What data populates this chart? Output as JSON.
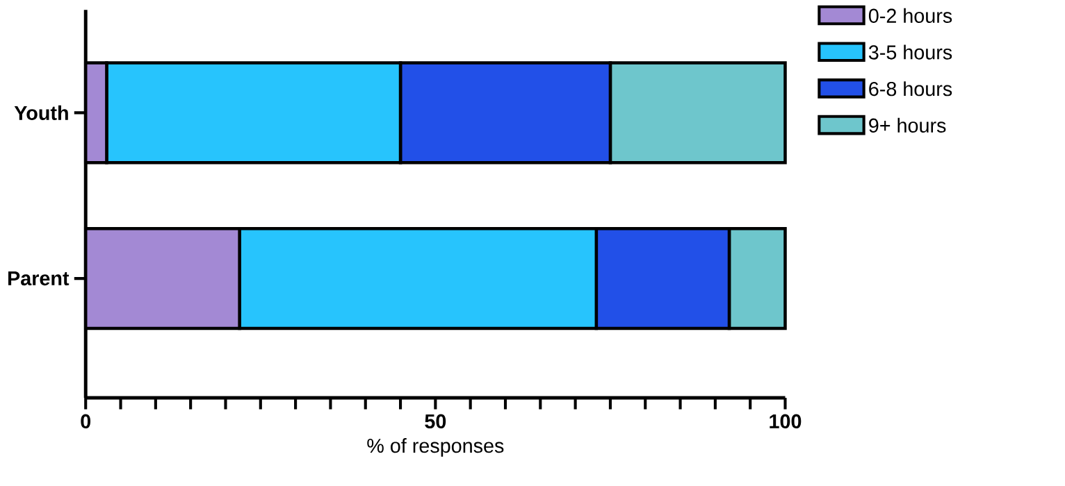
{
  "chart_data": {
    "type": "bar",
    "orientation": "horizontal",
    "stacked": true,
    "xlabel": "% of responses",
    "categories": [
      "Youth",
      "Parent"
    ],
    "series": [
      {
        "name": "0-2 hours",
        "color": "#a389d4",
        "values": [
          3,
          22
        ]
      },
      {
        "name": "3-5 hours",
        "color": "#27c4fd",
        "values": [
          42,
          51
        ]
      },
      {
        "name": "6-8 hours",
        "color": "#2250e8",
        "values": [
          30,
          19
        ]
      },
      {
        "name": "9+ hours",
        "color": "#6ec6cc",
        "values": [
          25,
          8
        ]
      }
    ],
    "xlim": [
      0,
      100
    ],
    "xticks": [
      0,
      {
        "value": 5,
        "label": null
      },
      {
        "value": 10,
        "label": null
      },
      {
        "value": 15,
        "label": null
      },
      {
        "value": 20,
        "label": null
      },
      {
        "value": 25,
        "label": null
      },
      {
        "value": 30,
        "label": null
      },
      {
        "value": 35,
        "label": null
      },
      {
        "value": 40,
        "label": null
      },
      {
        "value": 45,
        "label": null
      },
      50,
      {
        "value": 55,
        "label": null
      },
      {
        "value": 60,
        "label": null
      },
      {
        "value": 65,
        "label": null
      },
      {
        "value": 70,
        "label": null
      },
      {
        "value": 75,
        "label": null
      },
      {
        "value": 80,
        "label": null
      },
      {
        "value": 85,
        "label": null
      },
      {
        "value": 90,
        "label": null
      },
      {
        "value": 95,
        "label": null
      },
      100
    ],
    "grid": false,
    "legend": "top right"
  }
}
